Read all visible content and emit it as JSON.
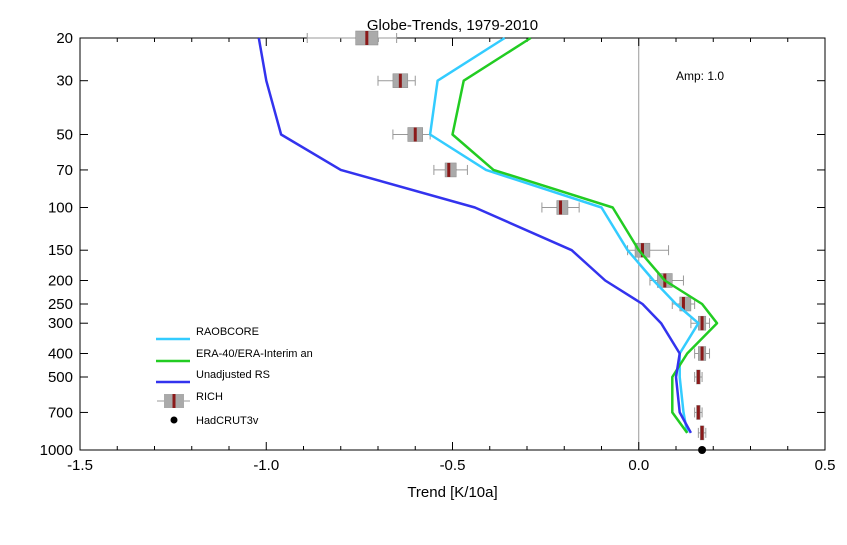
{
  "chart_data": {
    "type": "line",
    "title": "Globe-Trends, 1979-2010",
    "xlabel": "Trend [K/10a]",
    "ylabel": "",
    "annotation": "Amp:  1.0",
    "xlim": [
      -1.5,
      0.5
    ],
    "ylim": [
      1000,
      20
    ],
    "y_scale": "log",
    "x_ticks": [
      -1.5,
      -1.0,
      -0.5,
      0.0,
      0.5
    ],
    "x_tick_labels": [
      "-1.5",
      "-1.0",
      "-0.5",
      "0.0",
      "0.5"
    ],
    "y_ticks": [
      20,
      30,
      50,
      70,
      100,
      150,
      200,
      250,
      300,
      400,
      500,
      700,
      1000
    ],
    "y_tick_labels": [
      "20",
      "30",
      "50",
      "70",
      "100",
      "150",
      "200",
      "250",
      "300",
      "400",
      "500",
      "700",
      "1000"
    ],
    "grid": false,
    "zero_line": true,
    "legend_position": "bottom-left",
    "series": [
      {
        "name": "RAOBCORE",
        "color": "#33ccff",
        "x": [
          -0.36,
          -0.54,
          -0.56,
          -0.41,
          -0.1,
          -0.03,
          0.04,
          0.1,
          0.16,
          0.11,
          0.11,
          0.12,
          0.13
        ],
        "y": [
          20,
          30,
          50,
          70,
          100,
          150,
          200,
          250,
          300,
          400,
          500,
          700,
          850
        ]
      },
      {
        "name": "ERA-40/ERA-Interim an",
        "color": "#22cc22",
        "x": [
          -0.29,
          -0.47,
          -0.5,
          -0.39,
          -0.07,
          0.0,
          0.07,
          0.17,
          0.21,
          0.13,
          0.09,
          0.09,
          0.13
        ],
        "y": [
          20,
          30,
          50,
          70,
          100,
          150,
          200,
          250,
          300,
          400,
          500,
          700,
          850
        ]
      },
      {
        "name": "Unadjusted RS",
        "color": "#3333ee",
        "x": [
          -1.02,
          -1.0,
          -0.96,
          -0.8,
          -0.44,
          -0.18,
          -0.09,
          0.01,
          0.06,
          0.11,
          0.1,
          0.11,
          0.14
        ],
        "y": [
          20,
          30,
          50,
          70,
          100,
          150,
          200,
          250,
          300,
          400,
          500,
          700,
          850
        ]
      }
    ],
    "rich": {
      "name": "RICH",
      "y": [
        20,
        30,
        50,
        70,
        100,
        150,
        200,
        250,
        300,
        400,
        500,
        700,
        850
      ],
      "median": [
        -0.73,
        -0.64,
        -0.6,
        -0.51,
        -0.21,
        0.01,
        0.07,
        0.12,
        0.17,
        0.17,
        0.16,
        0.16,
        0.17
      ],
      "box_low": [
        -0.76,
        -0.66,
        -0.62,
        -0.52,
        -0.22,
        -0.01,
        0.05,
        0.11,
        0.16,
        0.16,
        0.155,
        0.155,
        0.165
      ],
      "box_high": [
        -0.7,
        -0.62,
        -0.58,
        -0.49,
        -0.19,
        0.03,
        0.09,
        0.14,
        0.18,
        0.18,
        0.165,
        0.165,
        0.175
      ],
      "whisker_low": [
        -0.89,
        -0.7,
        -0.66,
        -0.55,
        -0.26,
        -0.03,
        0.03,
        0.09,
        0.14,
        0.15,
        0.15,
        0.15,
        0.16
      ],
      "whisker_high": [
        -0.65,
        -0.6,
        -0.56,
        -0.46,
        -0.16,
        0.08,
        0.12,
        0.15,
        0.19,
        0.19,
        0.17,
        0.17,
        0.18
      ]
    },
    "hadcrut": {
      "name": "HadCRUT3v",
      "x": 0.17,
      "y": 1000
    }
  }
}
